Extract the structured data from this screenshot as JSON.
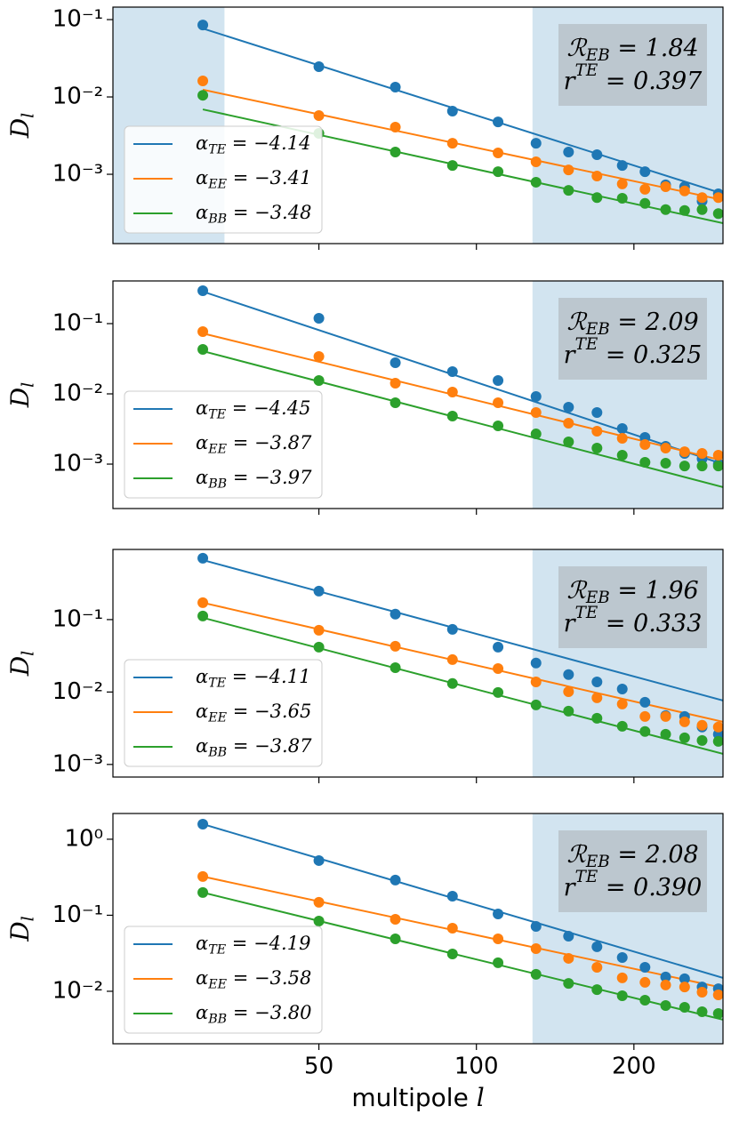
{
  "x_axis": {
    "x": [
      30,
      50,
      70,
      90,
      110,
      130,
      150,
      170,
      190,
      210,
      230,
      250,
      270,
      290
    ],
    "xlim": [
      20.2,
      296
    ],
    "xscale": "log",
    "xticks": [
      50,
      100,
      200
    ],
    "xlabel": "multipole l",
    "fit_x": [
      30,
      296
    ]
  },
  "chart_data": [
    {
      "type": "scatter",
      "yscale": "log",
      "ylabel": "Dl",
      "ylim": [
        0.000127,
        0.145
      ],
      "yticks": [
        {
          "value": 0.1,
          "label": "10⁻¹"
        },
        {
          "value": 0.01,
          "label": "10⁻²"
        },
        {
          "value": 0.001,
          "label": "10⁻³"
        }
      ],
      "shaded": [
        [
          20.2,
          33
        ],
        [
          128,
          296
        ]
      ],
      "legend": "lower left",
      "annotation": [
        "ℛEB = 1.84",
        "rTE = 0.397"
      ],
      "series": [
        {
          "name": "αTE = −4.14",
          "color": "#1f77b4",
          "values": [
            0.085,
            0.0246,
            0.0134,
            0.00655,
            0.00476,
            0.00252,
            0.00194,
            0.00179,
            0.0013,
            0.00108,
            0.00073,
            0.00069,
            0.00045,
            0.00056
          ],
          "fit": [
            0.0767,
            0.00056
          ]
        },
        {
          "name": "αEE = −3.41",
          "color": "#ff7f0e",
          "values": [
            0.0161,
            0.00574,
            0.00407,
            0.00252,
            0.00189,
            0.00145,
            0.00114,
            0.00095,
            0.00075,
            0.00064,
            0.00069,
            0.00061,
            0.0005,
            0.0005
          ],
          "fit": [
            0.0124,
            0.000465
          ]
        },
        {
          "name": "αBB = −3.48",
          "color": "#2ca02c",
          "values": [
            0.0105,
            0.00338,
            0.00194,
            0.0013,
            0.00108,
            0.00079,
            0.00062,
            0.0005,
            0.00049,
            0.00042,
            0.00035,
            0.00034,
            0.00035,
            0.00031
          ],
          "fit": [
            0.0069,
            0.000233
          ]
        }
      ]
    },
    {
      "type": "scatter",
      "yscale": "log",
      "ylabel": "Dl",
      "ylim": [
        0.000233,
        0.405
      ],
      "yticks": [
        {
          "value": 0.1,
          "label": "10⁻¹"
        },
        {
          "value": 0.01,
          "label": "10⁻²"
        },
        {
          "value": 0.001,
          "label": "10⁻³"
        }
      ],
      "shaded": [
        [
          128,
          296
        ]
      ],
      "legend": "lower left",
      "annotation": [
        "ℛEB = 2.09",
        "rTE = 0.325"
      ],
      "series": [
        {
          "name": "αTE = −4.45",
          "color": "#1f77b4",
          "values": [
            0.294,
            0.119,
            0.0277,
            0.0207,
            0.0155,
            0.00917,
            0.00646,
            0.00542,
            0.00321,
            0.0024,
            0.00179,
            0.00142,
            0.00119,
            0.001
          ],
          "fit": [
            0.286,
            0.001
          ]
        },
        {
          "name": "αEE = −3.87",
          "color": "#ff7f0e",
          "values": [
            0.0769,
            0.034,
            0.0142,
            0.0106,
            0.00747,
            0.00542,
            0.00382,
            0.00294,
            0.00233,
            0.0019,
            0.00169,
            0.0015,
            0.00142,
            0.00134
          ],
          "fit": [
            0.0726,
            0.00112
          ]
        },
        {
          "name": "αBB = −3.97",
          "color": "#2ca02c",
          "values": [
            0.043,
            0.0155,
            0.00747,
            0.00483,
            0.0035,
            0.00269,
            0.00207,
            0.00169,
            0.00134,
            0.00106,
            0.00103,
            0.00094,
            0.00094,
            0.00094
          ],
          "fit": [
            0.0406,
            0.00047
          ]
        }
      ]
    },
    {
      "type": "scatter",
      "yscale": "log",
      "ylabel": "Dl",
      "ylim": [
        0.00067,
        0.93
      ],
      "yticks": [
        {
          "value": 0.1,
          "label": "10⁻¹"
        },
        {
          "value": 0.01,
          "label": "10⁻²"
        },
        {
          "value": 0.001,
          "label": "10⁻³"
        }
      ],
      "shaded": [
        [
          128,
          296
        ]
      ],
      "legend": "lower left",
      "annotation": [
        "ℛEB = 1.96",
        "rTE = 0.333"
      ],
      "series": [
        {
          "name": "αTE = −4.11",
          "color": "#1f77b4",
          "values": [
            0.703,
            0.247,
            0.119,
            0.0733,
            0.0417,
            0.0251,
            0.0174,
            0.0138,
            0.011,
            0.00723,
            0.00473,
            0.0046,
            0.00328,
            0.00261
          ],
          "fit": [
            0.664,
            0.00764
          ]
        },
        {
          "name": "αEE = −3.65",
          "color": "#ff7f0e",
          "values": [
            0.171,
            0.0713,
            0.0429,
            0.028,
            0.0211,
            0.0138,
            0.0101,
            0.00832,
            0.00683,
            0.0046,
            0.0046,
            0.00388,
            0.00347,
            0.00328
          ],
          "fit": [
            0.171,
            0.00388
          ]
        },
        {
          "name": "αBB = −3.87",
          "color": "#2ca02c",
          "values": [
            0.112,
            0.0417,
            0.0217,
            0.0131,
            0.00986,
            0.00664,
            0.00544,
            0.00434,
            0.00337,
            0.00285,
            0.00261,
            0.00233,
            0.00214,
            0.00208
          ],
          "fit": [
            0.106,
            0.0014
          ]
        }
      ]
    },
    {
      "type": "scatter",
      "yscale": "log",
      "ylabel": "Dl",
      "ylim": [
        0.00204,
        2.18
      ],
      "yticks": [
        {
          "value": 1,
          "label": "10⁰"
        },
        {
          "value": 0.1,
          "label": "10⁻¹"
        },
        {
          "value": 0.01,
          "label": "10⁻²"
        }
      ],
      "shaded": [
        [
          128,
          296
        ]
      ],
      "legend": "lower left",
      "annotation": [
        "ℛEB = 2.08",
        "rTE = 0.390"
      ],
      "series": [
        {
          "name": "αTE = −4.19",
          "color": "#1f77b4",
          "values": [
            1.58,
            0.524,
            0.29,
            0.178,
            0.104,
            0.0714,
            0.0531,
            0.0385,
            0.0278,
            0.0207,
            0.0154,
            0.0146,
            0.0114,
            0.0108
          ],
          "fit": [
            1.58,
            0.015
          ]
        },
        {
          "name": "αEE = −3.58",
          "color": "#ff7f0e",
          "values": [
            0.323,
            0.148,
            0.0886,
            0.0676,
            0.049,
            0.0364,
            0.0271,
            0.0207,
            0.015,
            0.0131,
            0.0121,
            0.0114,
            0.00973,
            0.00898
          ],
          "fit": [
            0.323,
            0.0111
          ]
        },
        {
          "name": "αBB = −3.80",
          "color": "#2ca02c",
          "values": [
            0.199,
            0.0839,
            0.049,
            0.031,
            0.0237,
            0.0167,
            0.0127,
            0.0105,
            0.00874,
            0.00764,
            0.0065,
            0.00615,
            0.00538,
            0.0051
          ],
          "fit": [
            0.199,
            0.00423
          ]
        }
      ]
    }
  ]
}
